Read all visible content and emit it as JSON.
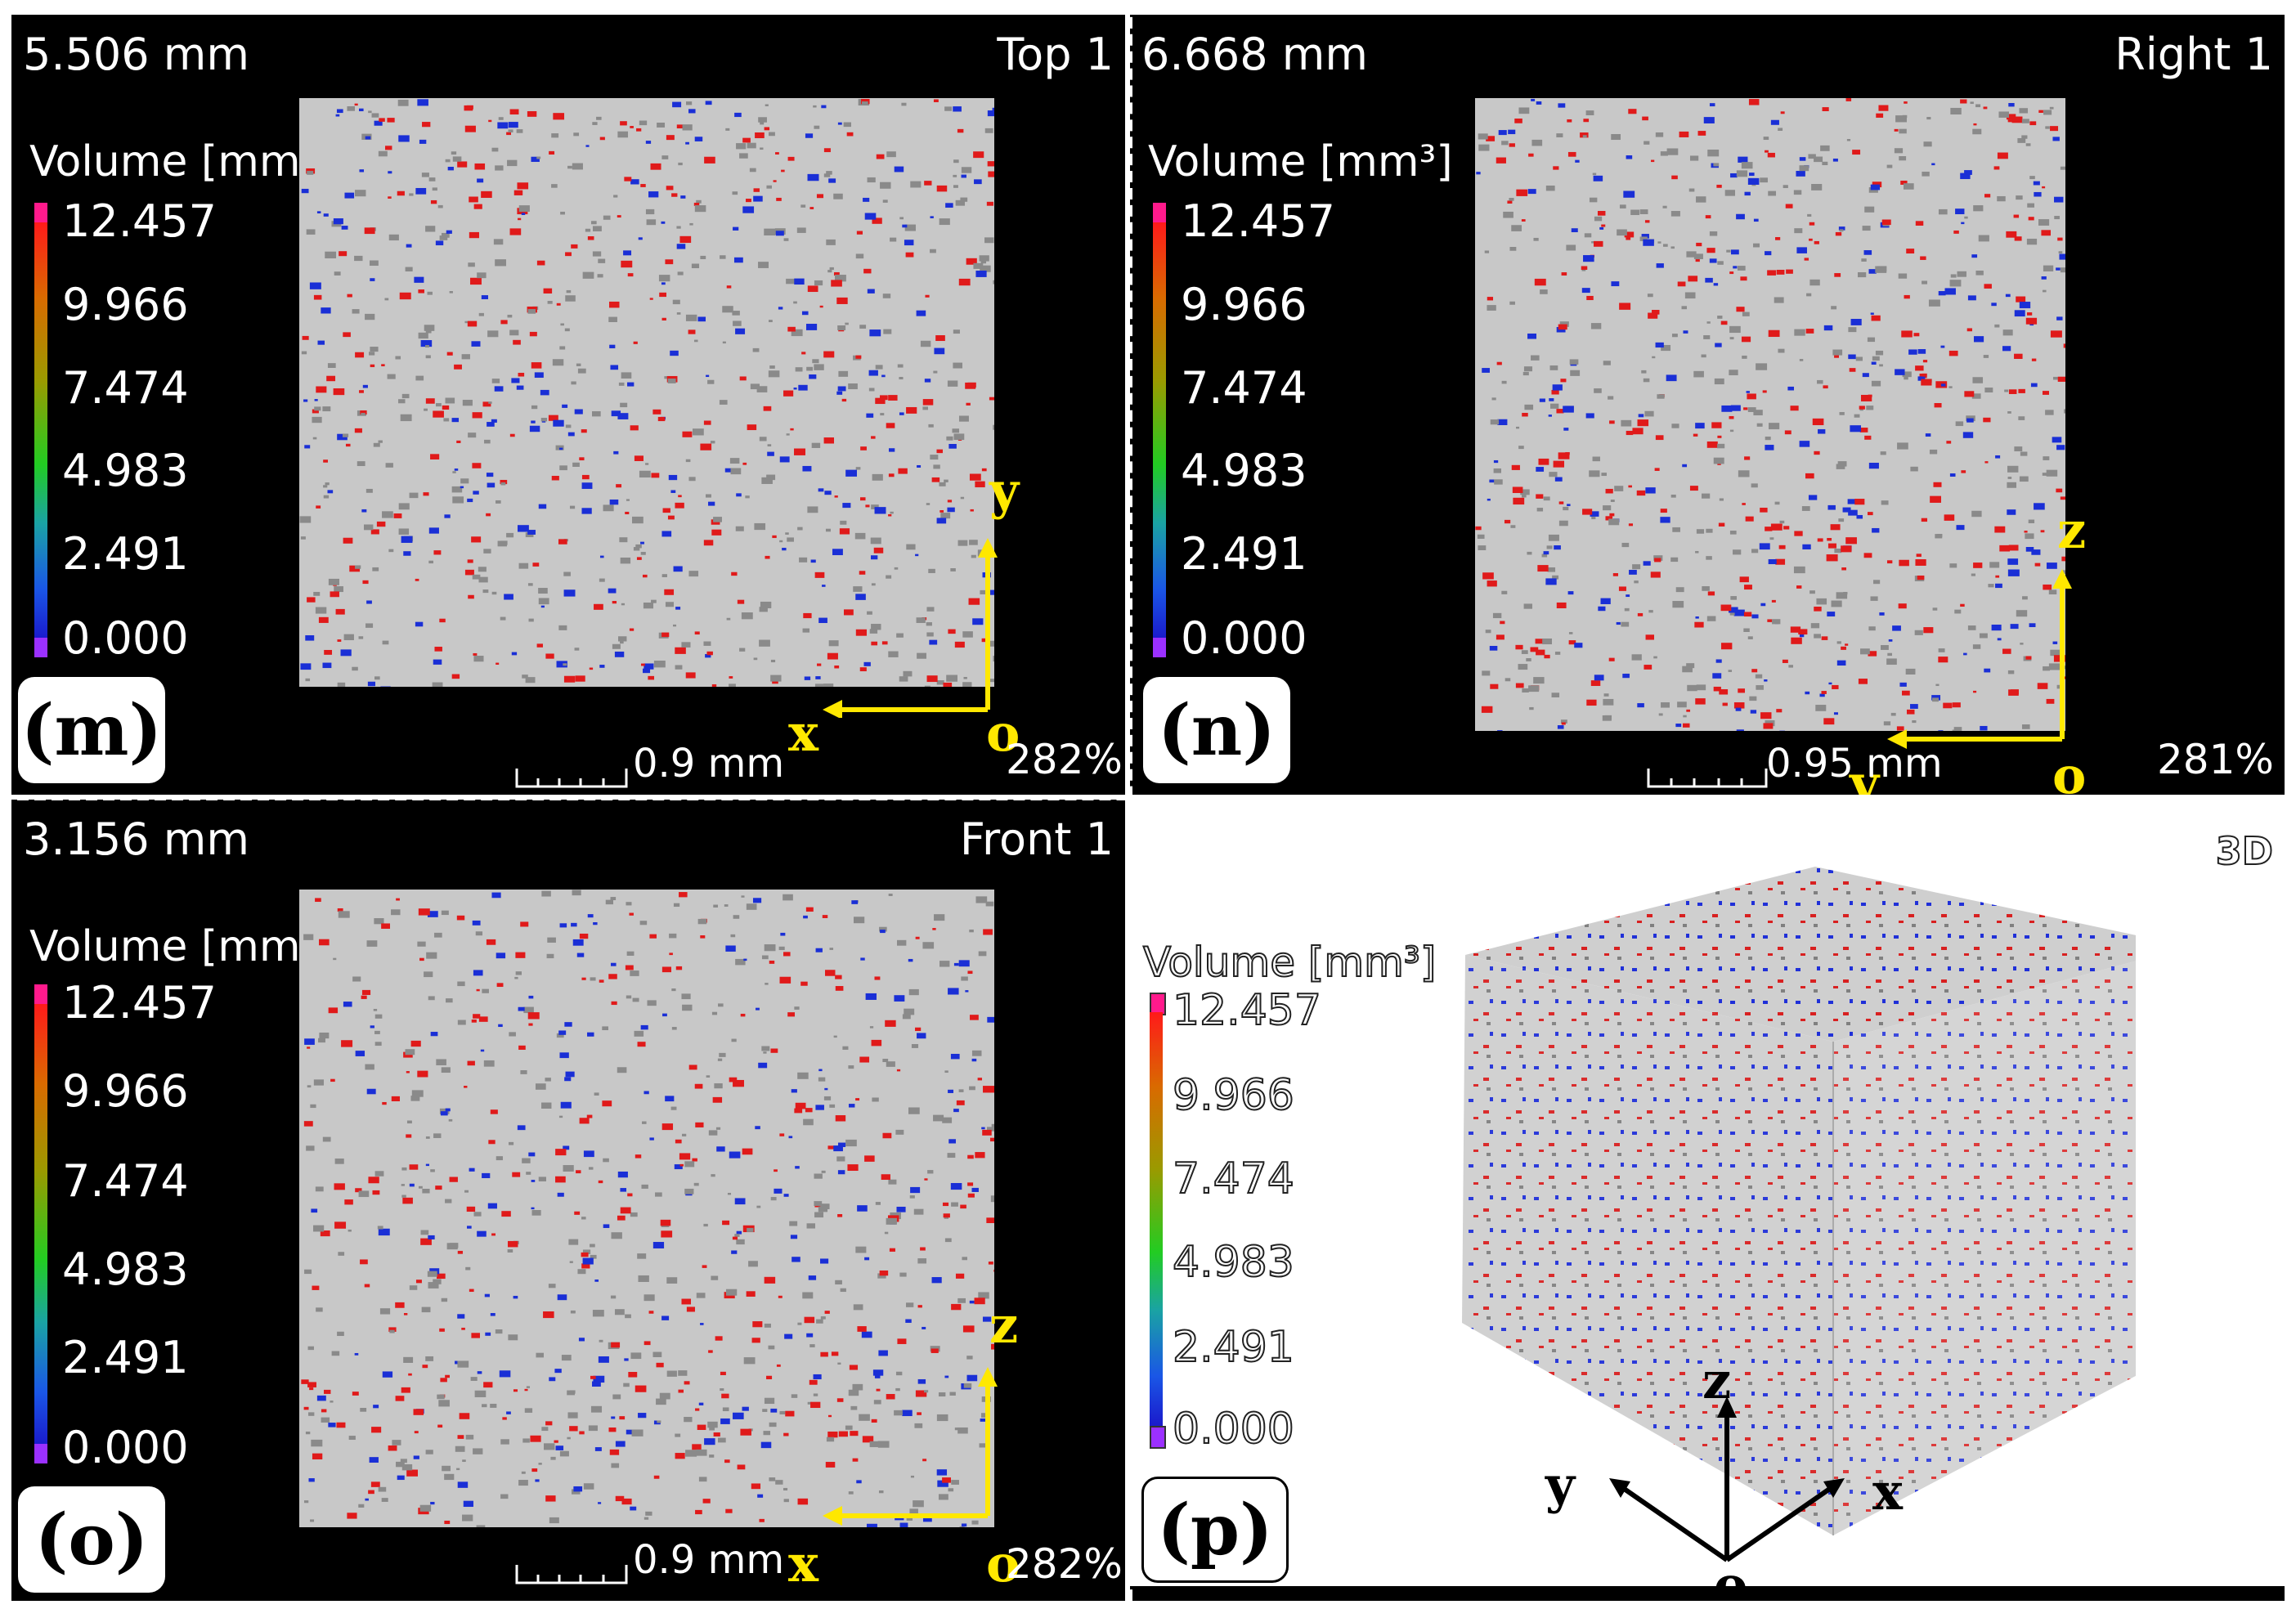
{
  "colorbar": {
    "title": "Volume [mm³]",
    "ticks": [
      "12.457",
      "9.966",
      "7.474",
      "4.983",
      "2.491",
      "0.000"
    ],
    "top_cap_color": "#ff1a8c",
    "bottom_cap_color": "#9b30ff"
  },
  "panels": {
    "m": {
      "depth": "5.506 mm",
      "view": "Top 1",
      "zoom": "282%",
      "scale": "0.9 mm",
      "tag": "(m)",
      "axis_h": "x",
      "axis_v": "y",
      "origin": "o"
    },
    "n": {
      "depth": "6.668 mm",
      "view": "Right 1",
      "zoom": "281%",
      "scale": "0.95 mm",
      "tag": "(n)",
      "axis_h": "y",
      "axis_v": "z",
      "origin": "o"
    },
    "o": {
      "depth": "3.156 mm",
      "view": "Front 1",
      "zoom": "282%",
      "scale": "0.9 mm",
      "tag": "(o)",
      "axis_h": "x",
      "axis_v": "z",
      "origin": "o"
    },
    "p": {
      "view": "3D",
      "tag": "(p)",
      "axis_z": "z",
      "axis_y": "y",
      "axis_x": "x",
      "origin": "o"
    }
  },
  "colors": {
    "pore_red": "#e01a1a",
    "pore_blue": "#1a2fd6",
    "axis_yellow": "#ffe800"
  }
}
